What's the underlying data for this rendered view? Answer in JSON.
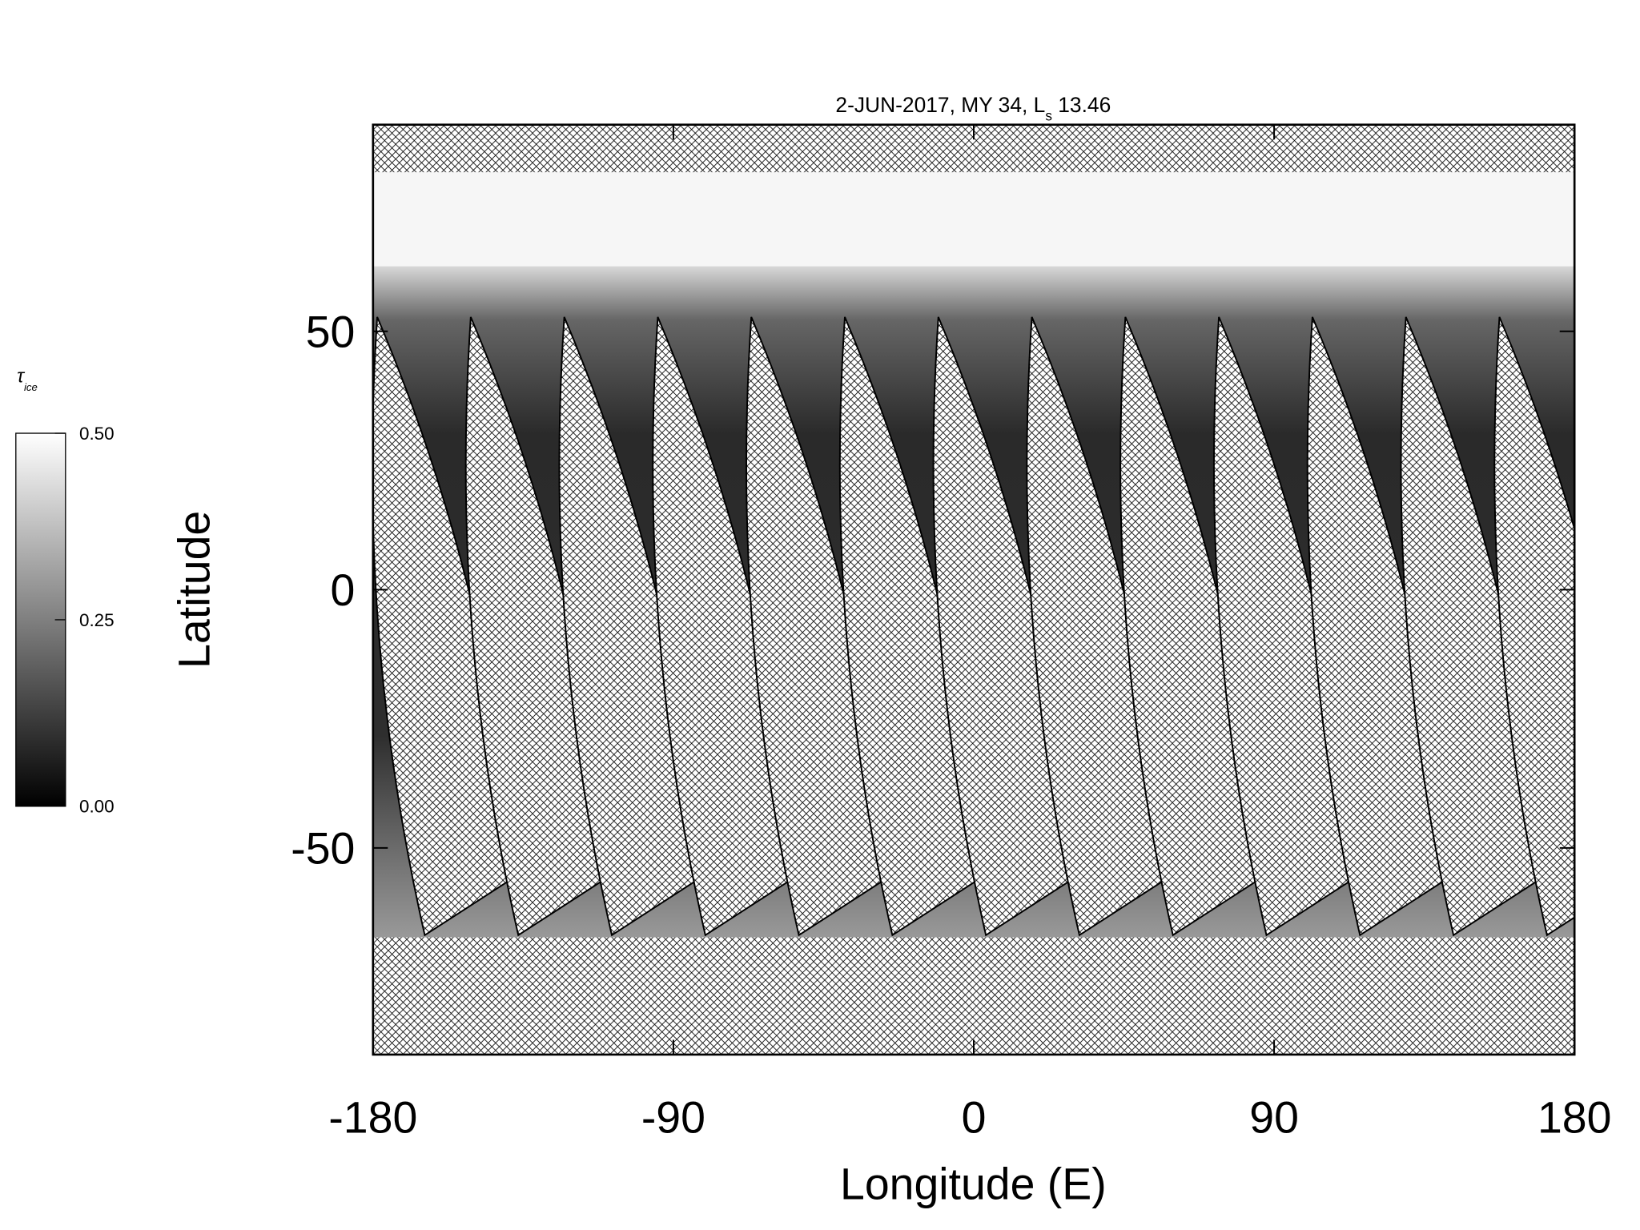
{
  "chart_data": {
    "type": "map",
    "title": "2-JUN-2017, MY 34,  L",
    "title_subscript": "s",
    "title_value": "13.46",
    "x_label": "Longitude (E)",
    "y_label": "Latitude",
    "xlim": [
      -180,
      180
    ],
    "xticks": [
      -180,
      -90,
      0,
      90,
      180
    ],
    "ylim": [
      -90,
      90
    ],
    "yticks": [
      -50,
      0,
      50
    ],
    "colorbar": {
      "label": "τ",
      "label_subscript": "ice",
      "lim": [
        0,
        0.5
      ],
      "colors": [
        "#000000",
        "#ffffff"
      ],
      "ticks": [
        {
          "value": 0,
          "label": "0.00"
        },
        {
          "value": 0.25,
          "label": "0.25"
        },
        {
          "value": 0.5,
          "label": "0.50"
        }
      ]
    }
  }
}
